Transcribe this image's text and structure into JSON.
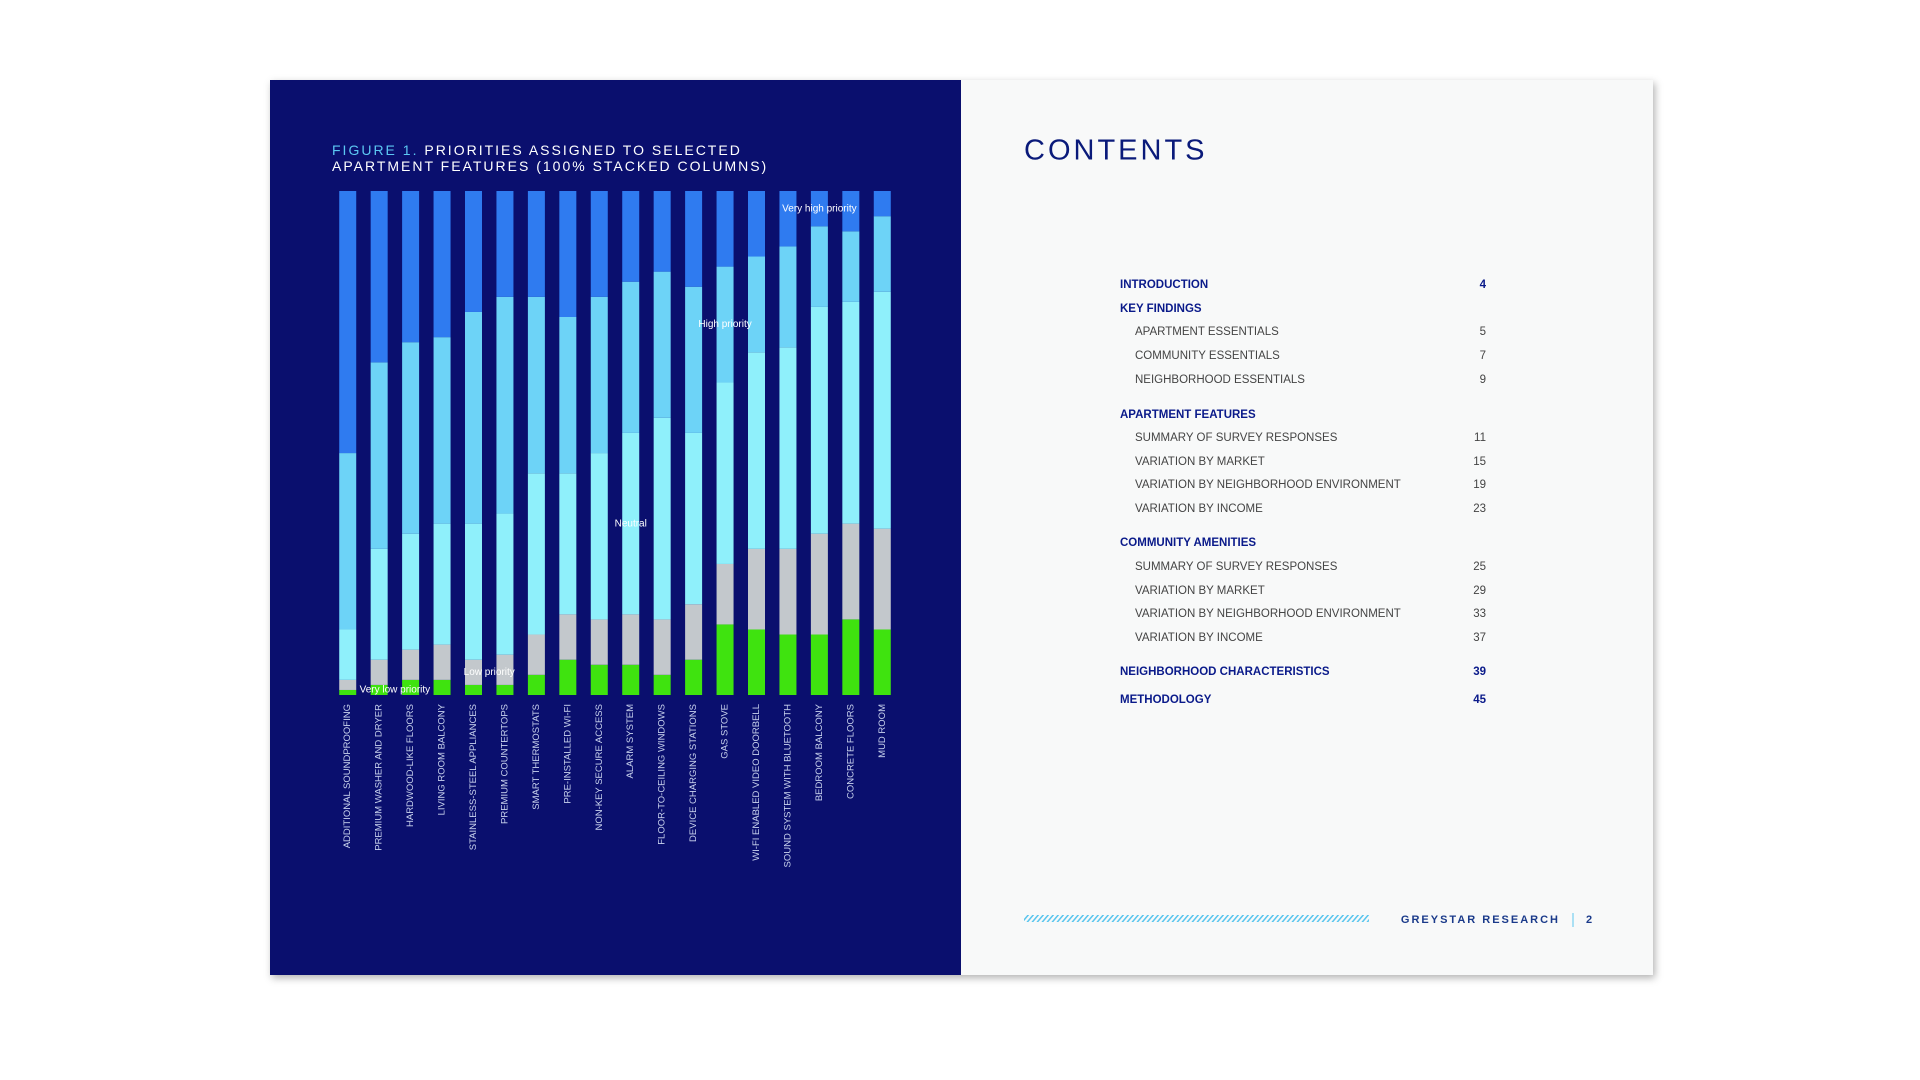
{
  "chart_data": {
    "type": "stacked_bar",
    "title_label": "FIGURE 1.",
    "title": "PRIORITIES ASSIGNED TO SELECTED APARTMENT FEATURES (100% STACKED COLUMNS)",
    "categories": [
      "ADDITIONAL SOUNDPROOFING",
      "PREMIUM WASHER AND DRYER",
      "HARDWOOD-LIKE FLOORS",
      "LIVING ROOM BALCONY",
      "STAINLESS-STEEL APPLIANCES",
      "PREMIUM COUNTERTOPS",
      "SMART THERMOSTATS",
      "PRE-INSTALLED WI-FI",
      "NON-KEY SECURE ACCESS",
      "ALARM SYSTEM",
      "FLOOR-TO-CEILING WINDOWS",
      "DEVICE CHARGING STATIONS",
      "GAS STOVE",
      "WI-FI ENABLED VIDEO DOORBELL",
      "SOUND SYSTEM WITH BLUETOOTH",
      "BEDROOM BALCONY",
      "CONCRETE FLOORS",
      "MUD ROOM"
    ],
    "series": [
      {
        "name": "Very low priority",
        "color": "#3fe30f",
        "values": [
          1,
          2,
          3,
          3,
          2,
          2,
          4,
          7,
          6,
          6,
          4,
          7,
          14,
          13,
          12,
          12,
          15,
          13
        ]
      },
      {
        "name": "Low priority",
        "color": "#c3c8cc",
        "values": [
          2,
          5,
          6,
          7,
          5,
          6,
          8,
          9,
          9,
          10,
          11,
          11,
          12,
          16,
          17,
          20,
          19,
          20
        ]
      },
      {
        "name": "Neutral",
        "color": "#8ff0fb",
        "values": [
          10,
          22,
          23,
          24,
          27,
          28,
          32,
          28,
          33,
          36,
          40,
          34,
          36,
          39,
          40,
          45,
          44,
          47
        ]
      },
      {
        "name": "High priority",
        "color": "#6dd3f7",
        "values": [
          35,
          37,
          38,
          37,
          42,
          43,
          35,
          31,
          31,
          30,
          29,
          29,
          23,
          19,
          20,
          16,
          14,
          15
        ]
      },
      {
        "name": "Very high priority",
        "color": "#2f7bf0",
        "values": [
          52,
          34,
          30,
          29,
          24,
          21,
          21,
          25,
          21,
          18,
          16,
          19,
          15,
          13,
          11,
          7,
          8,
          5
        ]
      }
    ],
    "ylim": [
      0,
      100
    ]
  },
  "contents": {
    "title": "CONTENTS",
    "entries": [
      {
        "label": "INTRODUCTION",
        "page": 4,
        "level": 1
      },
      {
        "label": "KEY FINDINGS",
        "level": 1
      },
      {
        "label": "APARTMENT ESSENTIALS",
        "page": 5,
        "level": 2
      },
      {
        "label": "COMMUNITY ESSENTIALS",
        "page": 7,
        "level": 2
      },
      {
        "label": "NEIGHBORHOOD ESSENTIALS",
        "page": 9,
        "level": 2
      },
      {
        "label": "APARTMENT FEATURES",
        "level": 1
      },
      {
        "label": "SUMMARY OF SURVEY RESPONSES",
        "page": 11,
        "level": 2
      },
      {
        "label": "VARIATION BY MARKET",
        "page": 15,
        "level": 2
      },
      {
        "label": "VARIATION BY NEIGHBORHOOD ENVIRONMENT",
        "page": 19,
        "level": 2
      },
      {
        "label": "VARIATION BY INCOME",
        "page": 23,
        "level": 2
      },
      {
        "label": "COMMUNITY AMENITIES",
        "level": 1
      },
      {
        "label": "SUMMARY OF SURVEY RESPONSES",
        "page": 25,
        "level": 2
      },
      {
        "label": "VARIATION BY MARKET",
        "page": 29,
        "level": 2
      },
      {
        "label": "VARIATION BY NEIGHBORHOOD ENVIRONMENT",
        "page": 33,
        "level": 2
      },
      {
        "label": "VARIATION BY INCOME",
        "page": 37,
        "level": 2
      },
      {
        "label": "NEIGHBORHOOD CHARACTERISTICS",
        "page": 39,
        "level": 1
      },
      {
        "label": "METHODOLOGY",
        "page": 45,
        "level": 1
      }
    ]
  },
  "footer": {
    "publisher": "GREYSTAR RESEARCH",
    "page": 2
  }
}
